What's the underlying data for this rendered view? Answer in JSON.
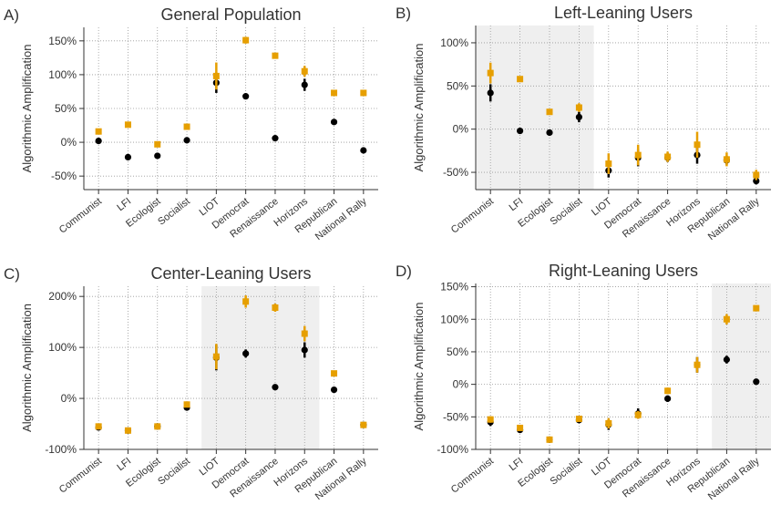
{
  "chart_data": [
    {
      "type": "point",
      "panel_label": "A)",
      "title": "General Population",
      "ylabel": "Algorithmic Amplification",
      "categories": [
        "Communist",
        "LFI",
        "Ecologist",
        "Socialist",
        "LIOT",
        "Democrat",
        "Renaissance",
        "Horizons",
        "Republican",
        "National Rally"
      ],
      "series": [
        {
          "color": "#000000",
          "values": [
            2,
            -22,
            -20,
            3,
            88,
            68,
            6,
            85,
            30,
            -12
          ],
          "errors": [
            4,
            3,
            3,
            3,
            15,
            3,
            3,
            9,
            3,
            3
          ]
        },
        {
          "color": "#e69f00",
          "values": [
            16,
            26,
            -3,
            23,
            98,
            151,
            128,
            105,
            73,
            73
          ],
          "errors": [
            4,
            3,
            3,
            3,
            20,
            5,
            4,
            8,
            3,
            3
          ]
        }
      ],
      "ylim": [
        -70,
        170
      ],
      "yticks": [
        {
          "value": -50,
          "label": "-50%"
        },
        {
          "value": 0,
          "label": "0%"
        },
        {
          "value": 50,
          "label": "50%"
        },
        {
          "value": 100,
          "label": "100%"
        },
        {
          "value": 150,
          "label": "150%"
        }
      ],
      "grid": true,
      "shaded": []
    },
    {
      "type": "point",
      "panel_label": "B)",
      "title": "Left-Leaning Users",
      "ylabel": "Algorithmic Amplification",
      "categories": [
        "Communist",
        "LFI",
        "Ecologist",
        "Socialist",
        "LIOT",
        "Democrat",
        "Renaissance",
        "Horizons",
        "Republican",
        "National Rally"
      ],
      "series": [
        {
          "color": "#000000",
          "values": [
            42,
            -2,
            -4,
            14,
            -48,
            -33,
            -33,
            -30,
            -36,
            -60
          ],
          "errors": [
            10,
            2,
            2,
            6,
            8,
            10,
            5,
            10,
            5,
            4
          ]
        },
        {
          "color": "#e69f00",
          "values": [
            65,
            58,
            20,
            25,
            -40,
            -30,
            -32,
            -18,
            -35,
            -53
          ],
          "errors": [
            12,
            3,
            3,
            5,
            12,
            12,
            6,
            15,
            8,
            6
          ]
        }
      ],
      "ylim": [
        -70,
        120
      ],
      "yticks": [
        {
          "value": -50,
          "label": "-50%"
        },
        {
          "value": 0,
          "label": "0%"
        },
        {
          "value": 50,
          "label": "50%"
        },
        {
          "value": 100,
          "label": "100%"
        }
      ],
      "grid": true,
      "shaded": [
        "Communist",
        "Socialist"
      ]
    },
    {
      "type": "point",
      "panel_label": "C)",
      "title": "Center-Leaning Users",
      "ylabel": "Algorithmic Amplification",
      "categories": [
        "Communist",
        "LFI",
        "Ecologist",
        "Socialist",
        "LIOT",
        "Democrat",
        "Renaissance",
        "Horizons",
        "Republican",
        "National Rally"
      ],
      "series": [
        {
          "color": "#000000",
          "values": [
            -57,
            -63,
            -55,
            -18,
            80,
            88,
            22,
            95,
            17,
            -52
          ],
          "errors": [
            4,
            3,
            3,
            3,
            25,
            8,
            3,
            15,
            3,
            3
          ]
        },
        {
          "color": "#e69f00",
          "values": [
            -55,
            -63,
            -55,
            -12,
            82,
            190,
            178,
            127,
            49,
            -52
          ],
          "errors": [
            5,
            3,
            3,
            5,
            25,
            12,
            8,
            15,
            5,
            4
          ]
        }
      ],
      "ylim": [
        -100,
        220
      ],
      "yticks": [
        {
          "value": -100,
          "label": "-100%"
        },
        {
          "value": 0,
          "label": "0%"
        },
        {
          "value": 100,
          "label": "100%"
        },
        {
          "value": 200,
          "label": "200%"
        }
      ],
      "grid": true,
      "shaded": [
        "LIOT",
        "Horizons"
      ]
    },
    {
      "type": "point",
      "panel_label": "D)",
      "title": "Right-Leaning Users",
      "ylabel": "Algorithmic Amplification",
      "categories": [
        "Communist",
        "LFI",
        "Ecologist",
        "Socialist",
        "LIOT",
        "Democrat",
        "Renaissance",
        "Horizons",
        "Republican",
        "National Rally"
      ],
      "series": [
        {
          "color": "#000000",
          "values": [
            -58,
            -70,
            -85,
            -55,
            -62,
            -45,
            -22,
            30,
            38,
            4
          ],
          "errors": [
            6,
            4,
            3,
            3,
            8,
            8,
            5,
            12,
            6,
            2
          ]
        },
        {
          "color": "#e69f00",
          "values": [
            -54,
            -67,
            -85,
            -53,
            -60,
            -47,
            -10,
            30,
            100,
            117
          ],
          "errors": [
            5,
            4,
            3,
            4,
            8,
            6,
            5,
            12,
            8,
            3
          ]
        }
      ],
      "ylim": [
        -100,
        155
      ],
      "yticks": [
        {
          "value": -100,
          "label": "-100%"
        },
        {
          "value": -50,
          "label": "-50%"
        },
        {
          "value": 0,
          "label": "0%"
        },
        {
          "value": 50,
          "label": "50%"
        },
        {
          "value": 100,
          "label": "100%"
        },
        {
          "value": 150,
          "label": "150%"
        }
      ],
      "grid": true,
      "shaded": [
        "Republican",
        "National Rally"
      ]
    }
  ]
}
